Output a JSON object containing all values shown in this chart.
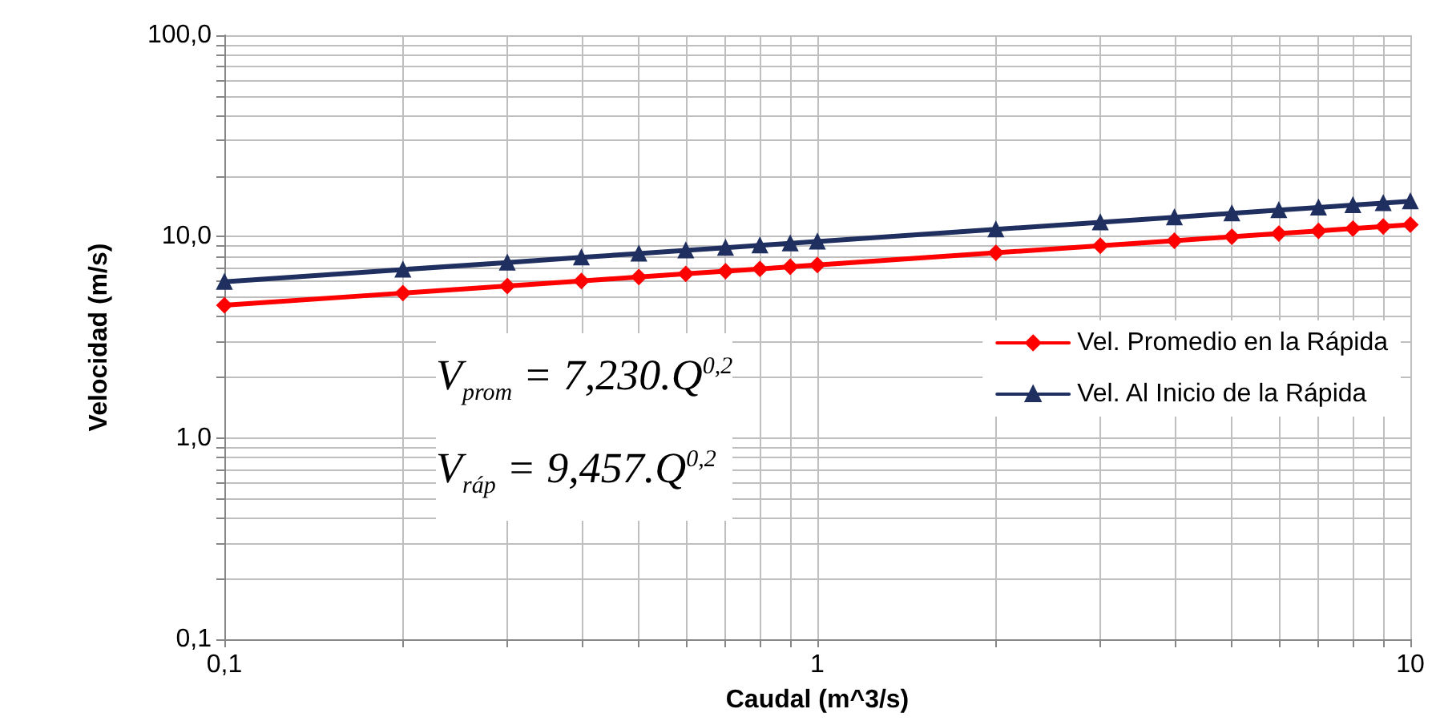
{
  "chart_data": {
    "type": "line",
    "xlabel": "Caudal (m^3/s)",
    "ylabel": "Velocidad (m/s)",
    "annotations": [
      "V$_{prom}$ = 7,230.Q$^{0,2}$",
      "V$_{ráp}$ = 9,457.Q$^{0,2}$"
    ],
    "x": [
      0.1,
      0.2,
      0.3,
      0.4,
      0.5,
      0.6,
      0.7,
      0.8,
      0.9,
      1,
      2,
      3,
      4,
      5,
      6,
      7,
      8,
      9,
      10
    ],
    "series": [
      {
        "name": "Vel. Promedio en la Rápida",
        "color": "#ff0000",
        "marker": "diamond",
        "values": [
          4.56,
          5.24,
          5.68,
          6.02,
          6.3,
          6.53,
          6.73,
          6.91,
          7.08,
          7.23,
          8.31,
          9.01,
          9.54,
          9.98,
          10.35,
          10.67,
          10.96,
          11.22,
          11.46
        ]
      },
      {
        "name": "Vel. Al Inicio de la Rápida",
        "color": "#1f2f5f",
        "marker": "triangle",
        "values": [
          5.97,
          6.86,
          7.43,
          7.88,
          8.24,
          8.54,
          8.8,
          9.04,
          9.26,
          9.46,
          10.86,
          11.78,
          12.48,
          13.05,
          13.53,
          13.96,
          14.34,
          14.68,
          14.99
        ]
      }
    ],
    "log": "xy",
    "xlim": [
      0.1,
      10
    ],
    "ylim": [
      0.1,
      100
    ],
    "xticks": [
      {
        "value": 0.1,
        "label": "0,1"
      },
      {
        "value": 0.2,
        "label": null
      },
      {
        "value": 0.3,
        "label": null
      },
      {
        "value": 0.4,
        "label": null
      },
      {
        "value": 0.5,
        "label": null
      },
      {
        "value": 0.6,
        "label": null
      },
      {
        "value": 0.7,
        "label": null
      },
      {
        "value": 0.8,
        "label": null
      },
      {
        "value": 0.9,
        "label": null
      },
      {
        "value": 1,
        "label": "1"
      },
      {
        "value": 2,
        "label": null
      },
      {
        "value": 3,
        "label": null
      },
      {
        "value": 4,
        "label": null
      },
      {
        "value": 5,
        "label": null
      },
      {
        "value": 6,
        "label": null
      },
      {
        "value": 7,
        "label": null
      },
      {
        "value": 8,
        "label": null
      },
      {
        "value": 9,
        "label": null
      },
      {
        "value": 10,
        "label": "10"
      }
    ],
    "yticks": [
      {
        "value": 0.1,
        "label": "0,1"
      },
      {
        "value": 0.2,
        "label": null
      },
      {
        "value": 0.3,
        "label": null
      },
      {
        "value": 0.4,
        "label": null
      },
      {
        "value": 0.5,
        "label": null
      },
      {
        "value": 0.6,
        "label": null
      },
      {
        "value": 0.7,
        "label": null
      },
      {
        "value": 0.8,
        "label": null
      },
      {
        "value": 0.9,
        "label": null
      },
      {
        "value": 1,
        "label": "1,0"
      },
      {
        "value": 2,
        "label": null
      },
      {
        "value": 3,
        "label": null
      },
      {
        "value": 4,
        "label": null
      },
      {
        "value": 5,
        "label": null
      },
      {
        "value": 6,
        "label": null
      },
      {
        "value": 7,
        "label": null
      },
      {
        "value": 8,
        "label": null
      },
      {
        "value": 9,
        "label": null
      },
      {
        "value": 10,
        "label": "10,0"
      },
      {
        "value": 20,
        "label": null
      },
      {
        "value": 30,
        "label": null
      },
      {
        "value": 40,
        "label": null
      },
      {
        "value": 50,
        "label": null
      },
      {
        "value": 60,
        "label": null
      },
      {
        "value": 70,
        "label": null
      },
      {
        "value": 80,
        "label": null
      },
      {
        "value": 90,
        "label": null
      },
      {
        "value": 100,
        "label": "100,0"
      }
    ],
    "grid": true,
    "legend": "right",
    "line_style": "solid"
  }
}
